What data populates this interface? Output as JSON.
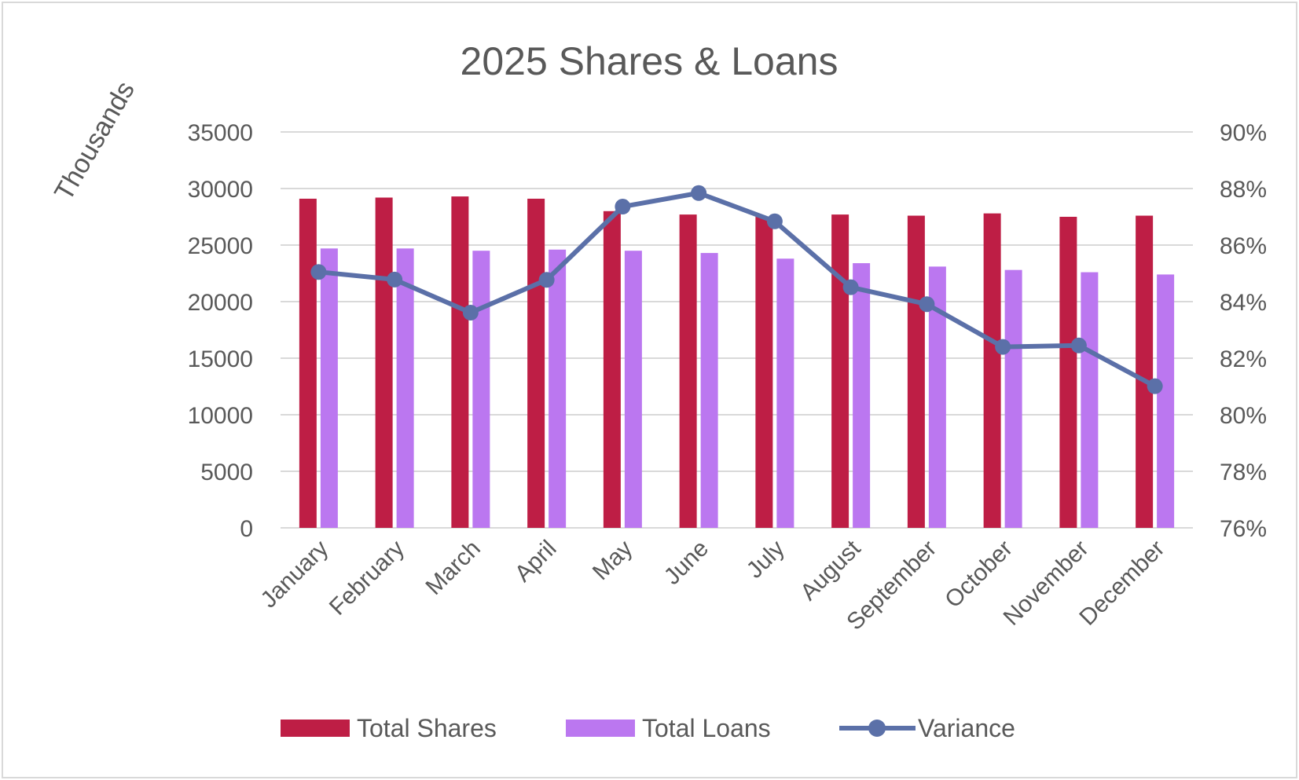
{
  "chart_data": {
    "type": "bar",
    "title": "2025 Shares & Loans",
    "ylabel": "Thousands",
    "categories": [
      "January",
      "February",
      "March",
      "April",
      "May",
      "June",
      "July",
      "August",
      "September",
      "October",
      "November",
      "December"
    ],
    "ylim": [
      0,
      35000
    ],
    "yticks": [
      "0",
      "5000",
      "10000",
      "15000",
      "20000",
      "25000",
      "30000",
      "35000"
    ],
    "y2lim": [
      0.76,
      0.9
    ],
    "y2ticks": [
      "76%",
      "78%",
      "80%",
      "82%",
      "84%",
      "86%",
      "88%",
      "90%"
    ],
    "grid": true,
    "legend": "bottom",
    "series": [
      {
        "name": "Total Shares",
        "type": "bar",
        "color": "#be1e45",
        "values": [
          29100,
          29200,
          29300,
          29100,
          28000,
          27700,
          27500,
          27700,
          27600,
          27800,
          27500,
          27600
        ]
      },
      {
        "name": "Total Loans",
        "type": "bar",
        "color": "#bb77f0",
        "values": [
          24700,
          24700,
          24500,
          24600,
          24500,
          24300,
          23800,
          23400,
          23100,
          22800,
          22600,
          22400
        ]
      },
      {
        "name": "Variance",
        "type": "line",
        "axis": "secondary",
        "color": "#5b70a8",
        "values": [
          0.8505,
          0.8478,
          0.8361,
          0.8477,
          0.8736,
          0.8784,
          0.8684,
          0.8451,
          0.8391,
          0.824,
          0.8245,
          0.8101
        ]
      }
    ]
  }
}
